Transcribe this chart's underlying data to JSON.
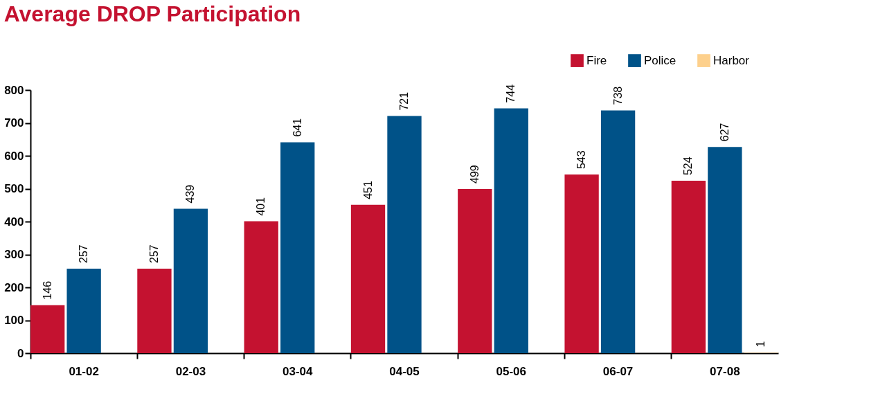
{
  "chart_data": {
    "type": "bar",
    "title": "Average DROP Participation",
    "categories": [
      "01-02",
      "02-03",
      "03-04",
      "04-05",
      "05-06",
      "06-07",
      "07-08"
    ],
    "series": [
      {
        "name": "Fire",
        "color": "#c41230",
        "values": [
          146,
          257,
          401,
          451,
          499,
          543,
          524
        ]
      },
      {
        "name": "Police",
        "color": "#005288",
        "values": [
          257,
          439,
          641,
          721,
          744,
          738,
          627
        ]
      },
      {
        "name": "Harbor",
        "color": "#fdd08c",
        "values": [
          null,
          null,
          null,
          null,
          null,
          null,
          1
        ]
      }
    ],
    "ylim": [
      0,
      800
    ],
    "yticks": [
      0,
      100,
      200,
      300,
      400,
      500,
      600,
      700,
      800
    ],
    "grid": false,
    "legend": "top right",
    "data_labels": true
  }
}
